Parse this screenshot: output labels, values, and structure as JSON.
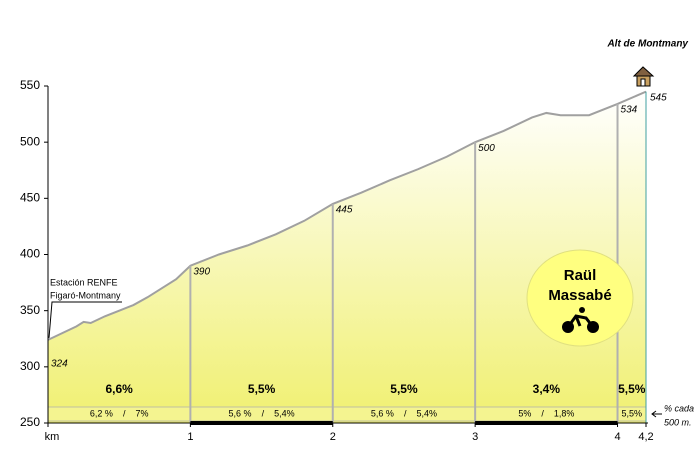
{
  "chart_data": {
    "type": "area",
    "title": "Alt de Montmany",
    "rider": [
      "Raül",
      "Massabé"
    ],
    "station": [
      "Estación RENFE",
      "Figaró-Montmany"
    ],
    "note": [
      "% cada",
      "500 m."
    ],
    "x": [
      0,
      0.1,
      0.2,
      0.25,
      0.3,
      0.4,
      0.5,
      0.6,
      0.7,
      0.8,
      0.9,
      1,
      1.2,
      1.4,
      1.6,
      1.8,
      2,
      2.2,
      2.4,
      2.6,
      2.8,
      3,
      3.2,
      3.4,
      3.5,
      3.6,
      3.8,
      4,
      4.2
    ],
    "values": [
      324,
      330,
      336,
      340,
      339,
      345,
      350,
      355,
      362,
      370,
      378,
      390,
      400,
      408,
      418,
      430,
      445,
      455,
      466,
      476,
      487,
      500,
      510,
      522,
      526,
      524,
      524,
      534,
      545
    ],
    "checkpoints": [
      {
        "km": 0,
        "altitude": 324
      },
      {
        "km": 1,
        "altitude": 390
      },
      {
        "km": 2,
        "altitude": 445
      },
      {
        "km": 3,
        "altitude": 500
      },
      {
        "km": 4,
        "altitude": 534
      },
      {
        "km": 4.2,
        "altitude": 545
      }
    ],
    "segments": [
      {
        "from": 0,
        "to": 1,
        "gradient": "6,6%",
        "detail": "6,2 %    /    7%"
      },
      {
        "from": 1,
        "to": 2,
        "gradient": "5,5%",
        "detail": "5,6 %    /    5,4%"
      },
      {
        "from": 2,
        "to": 3,
        "gradient": "5,5%",
        "detail": "5,6 %    /    5,4%"
      },
      {
        "from": 3,
        "to": 4,
        "gradient": "3,4%",
        "detail": "5%    /    1,8%"
      },
      {
        "from": 4,
        "to": 4.2,
        "gradient": "5,5%",
        "detail": "5,5%"
      }
    ],
    "xlim": [
      0,
      4.2
    ],
    "xticks": [
      {
        "value": 0,
        "label": "km"
      },
      1,
      2,
      3,
      4,
      {
        "value": 4.2,
        "label": "4,2"
      }
    ],
    "ylim": [
      250,
      550
    ],
    "yticks": [
      250,
      300,
      350,
      400,
      450,
      500,
      550
    ],
    "line_color": "#a0a0a0",
    "fill_color": "#f0f070"
  }
}
